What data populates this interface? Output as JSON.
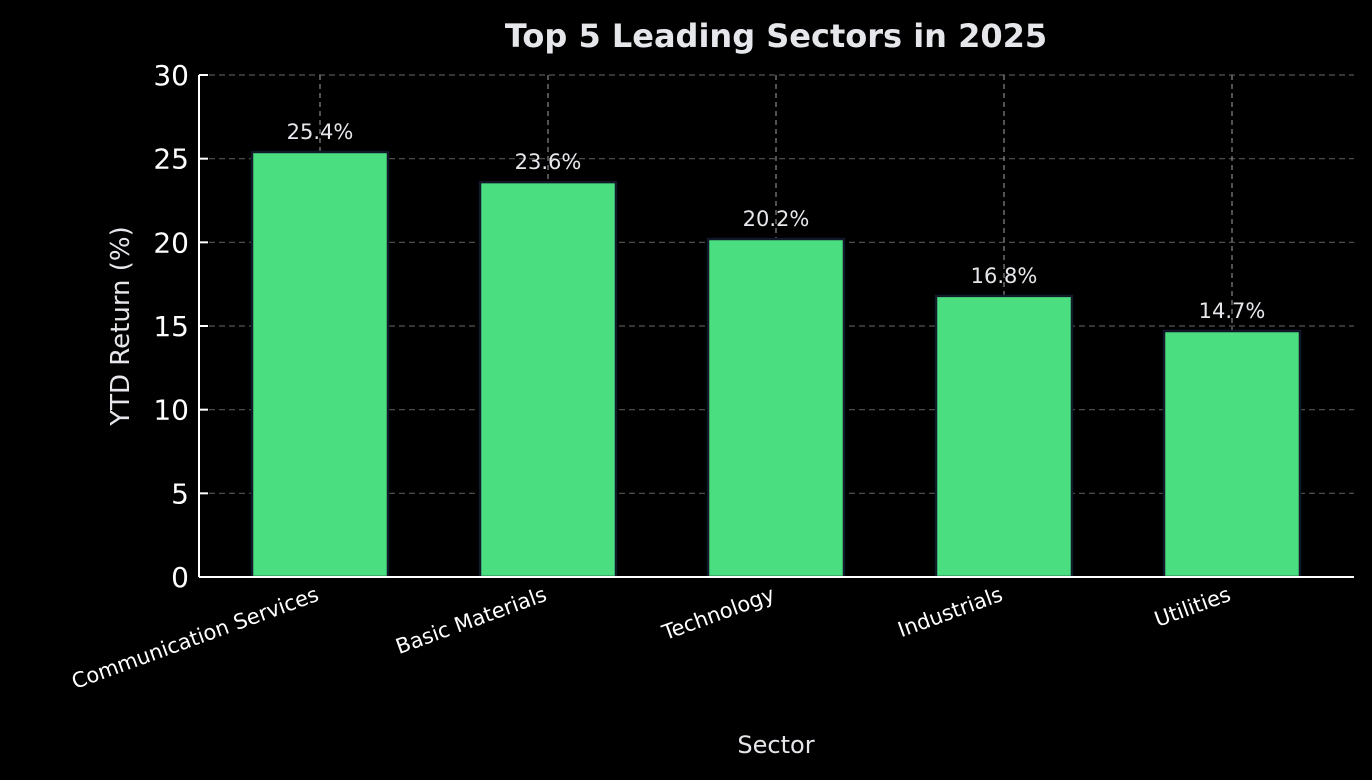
{
  "chart_data": {
    "type": "bar",
    "title": "Top 5 Leading Sectors in 2025",
    "xlabel": "Sector",
    "ylabel": "YTD Return (%)",
    "categories": [
      "Communication Services",
      "Basic Materials",
      "Technology",
      "Industrials",
      "Utilities"
    ],
    "values": [
      25.4,
      23.6,
      20.2,
      16.8,
      14.7
    ],
    "data_labels": [
      "25.4%",
      "23.6%",
      "20.2%",
      "16.8%",
      "14.7%"
    ],
    "ylim": [
      0,
      30
    ],
    "yticks": [
      0,
      5,
      10,
      15,
      20,
      25,
      30
    ],
    "grid": true,
    "colors": {
      "bar": "#4ade80",
      "bar_edge": "#111827",
      "background": "#000000",
      "text": "#e5e7eb"
    }
  }
}
